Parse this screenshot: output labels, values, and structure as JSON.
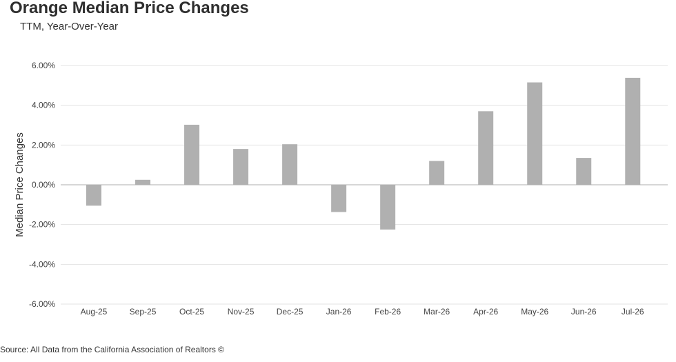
{
  "chart_data": {
    "type": "bar",
    "title": "Orange Median Price Changes",
    "subtitle": "TTM, Year-Over-Year",
    "xlabel": "",
    "ylabel": "Median Price Changes",
    "categories": [
      "Aug-25",
      "Sep-25",
      "Oct-25",
      "Nov-25",
      "Dec-25",
      "Jan-26",
      "Feb-26",
      "Mar-26",
      "Apr-26",
      "May-26",
      "Jun-26",
      "Jul-26"
    ],
    "values": [
      -1.05,
      0.25,
      3.02,
      1.8,
      2.04,
      -1.37,
      -2.25,
      1.2,
      3.7,
      5.15,
      1.35,
      5.38
    ],
    "ylim": [
      -6,
      6
    ],
    "yticks": [
      "6.00%",
      "4.00%",
      "2.00%",
      "0.00%",
      "-2.00%",
      "-4.00%",
      "-6.00%"
    ],
    "ytick_values": [
      6,
      4,
      2,
      0,
      -2,
      -4,
      -6
    ],
    "grid": true,
    "bar_color": "#b0b0b0",
    "source": "Source: All Data from the California Association of Realtors ©"
  }
}
